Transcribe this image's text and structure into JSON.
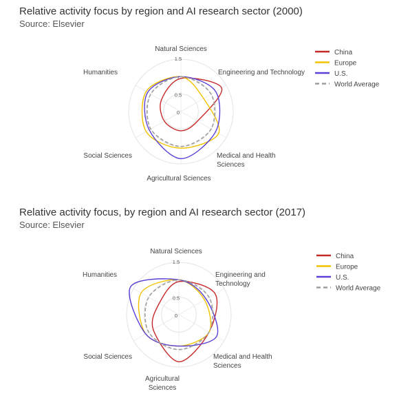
{
  "chart_data": [
    {
      "type": "radar",
      "title": "Relative activity focus by region and AI research sector (2000)",
      "subtitle": "Source: Elsevier",
      "axes": [
        "Natural Sciences",
        "Engineering and Technology",
        "Medical and Health Sciences",
        "Agricultural Sciences",
        "Social Sciences",
        "Humanities"
      ],
      "axis_labels": [
        [
          "Natural Sciences"
        ],
        [
          "Engineering and Technology"
        ],
        [
          "Medical and Health",
          "Sciences"
        ],
        [
          "Agricultural Sciences"
        ],
        [
          "Social Sciences"
        ],
        [
          "Humanities"
        ]
      ],
      "ticks": [
        "0",
        "0.5",
        "1",
        "1.5"
      ],
      "rlim": [
        0,
        1.5
      ],
      "legend_position": "top-right",
      "series": [
        {
          "name": "China",
          "color": "#c62828",
          "dash": false,
          "values": [
            0.95,
            1.35,
            0.55,
            0.55,
            0.55,
            0.65
          ]
        },
        {
          "name": "Europe",
          "color": "#f2c200",
          "dash": false,
          "values": [
            1.0,
            0.75,
            1.25,
            1.05,
            1.15,
            1.15
          ]
        },
        {
          "name": "U.S.",
          "color": "#5b3fd6",
          "dash": false,
          "values": [
            1.0,
            1.15,
            1.15,
            1.35,
            1.05,
            1.1
          ]
        },
        {
          "name": "World Average",
          "color": "#9e9e9e",
          "dash": true,
          "values": [
            1.0,
            1.0,
            1.0,
            1.0,
            1.0,
            1.0
          ]
        }
      ]
    },
    {
      "type": "radar",
      "title": "Relative activity focus, by region and AI research sector (2017)",
      "subtitle": "Source: Elsevier",
      "axes": [
        "Natural Sciences",
        "Engineering and Technology",
        "Medical and Health Sciences",
        "Agricultural Sciences",
        "Social Sciences",
        "Humanities"
      ],
      "axis_labels": [
        [
          "Natural Sciences"
        ],
        [
          "Engineering and",
          "Technology"
        ],
        [
          "Medical and Health",
          "Sciences"
        ],
        [
          "Agricultural",
          "Sciences"
        ],
        [
          "Social Sciences"
        ],
        [
          "Humanities"
        ]
      ],
      "ticks": [
        "0",
        "0.5",
        "1",
        "1.5"
      ],
      "rlim": [
        0,
        1.5
      ],
      "legend_position": "top-right",
      "series": [
        {
          "name": "China",
          "color": "#c62828",
          "dash": false,
          "values": [
            0.95,
            1.2,
            1.0,
            1.35,
            0.85,
            0.65
          ]
        },
        {
          "name": "Europe",
          "color": "#f2c200",
          "dash": false,
          "values": [
            1.0,
            0.85,
            1.0,
            0.9,
            1.1,
            1.25
          ]
        },
        {
          "name": "U.S.",
          "color": "#5b3fd6",
          "dash": false,
          "values": [
            1.0,
            0.9,
            1.25,
            0.9,
            1.1,
            1.6
          ]
        },
        {
          "name": "World Average",
          "color": "#9e9e9e",
          "dash": true,
          "values": [
            1.0,
            1.0,
            1.0,
            1.0,
            1.0,
            1.0
          ]
        }
      ]
    }
  ]
}
